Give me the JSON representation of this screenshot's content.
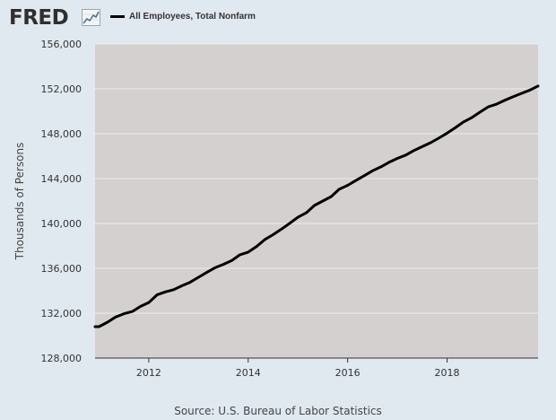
{
  "header": {
    "logo_text": "FRED",
    "legend_label": "All Employees, Total Nonfarm"
  },
  "colors": {
    "background": "#e1e9f0",
    "plot_background": "#d4d0cf",
    "line": "#000000",
    "grid": "#eeeeee"
  },
  "chart_data": {
    "type": "line",
    "title": "All Employees, Total Nonfarm",
    "xlabel": "",
    "ylabel": "Thousands of Persons",
    "xlim": [
      2010.92,
      2019.83
    ],
    "ylim": [
      128000,
      156000
    ],
    "x_ticks": [
      2012,
      2014,
      2016,
      2018
    ],
    "x_tick_labels": [
      "2012",
      "2014",
      "2016",
      "2018"
    ],
    "y_ticks": [
      128000,
      132000,
      136000,
      140000,
      144000,
      148000,
      152000,
      156000
    ],
    "y_tick_labels": [
      "128,000",
      "132,000",
      "136,000",
      "140,000",
      "144,000",
      "148,000",
      "152,000",
      "156,000"
    ],
    "grid": true,
    "legend_position": "top-left",
    "series": [
      {
        "name": "All Employees, Total Nonfarm",
        "x": [
          2010.92,
          2011.0,
          2011.17,
          2011.33,
          2011.5,
          2011.67,
          2011.83,
          2012.0,
          2012.17,
          2012.33,
          2012.5,
          2012.67,
          2012.83,
          2013.0,
          2013.17,
          2013.33,
          2013.5,
          2013.67,
          2013.83,
          2014.0,
          2014.17,
          2014.33,
          2014.5,
          2014.67,
          2014.83,
          2015.0,
          2015.17,
          2015.33,
          2015.5,
          2015.67,
          2015.83,
          2016.0,
          2016.17,
          2016.33,
          2016.5,
          2016.67,
          2016.83,
          2017.0,
          2017.17,
          2017.33,
          2017.5,
          2017.67,
          2017.83,
          2018.0,
          2018.17,
          2018.33,
          2018.5,
          2018.67,
          2018.83,
          2019.0,
          2019.17,
          2019.33,
          2019.5,
          2019.67,
          2019.83
        ],
        "values": [
          130800,
          130800,
          131200,
          131650,
          131950,
          132150,
          132600,
          132950,
          133650,
          133900,
          134100,
          134450,
          134750,
          135200,
          135650,
          136050,
          136350,
          136700,
          137200,
          137450,
          137950,
          138550,
          139000,
          139500,
          140000,
          140550,
          140950,
          141600,
          142000,
          142400,
          143050,
          143400,
          143850,
          144250,
          144700,
          145050,
          145450,
          145800,
          146100,
          146500,
          146850,
          147200,
          147600,
          148050,
          148550,
          149050,
          149450,
          149950,
          150400,
          150650,
          151000,
          151300,
          151600,
          151900,
          152250
        ]
      }
    ]
  },
  "footer": {
    "source": "Source: U.S. Bureau of Labor Statistics"
  }
}
